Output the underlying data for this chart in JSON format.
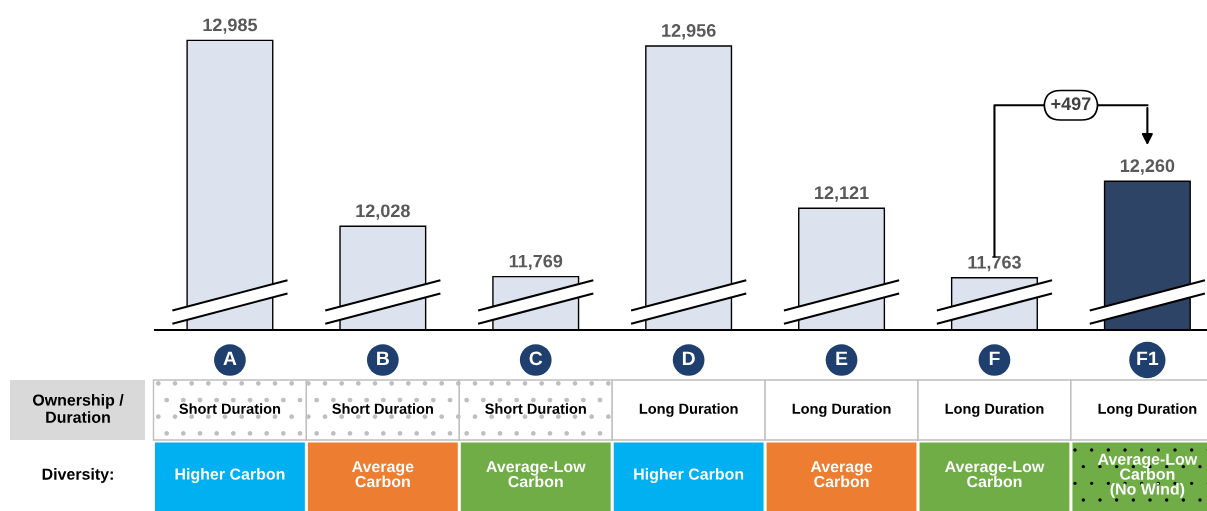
{
  "chart_data": {
    "type": "bar",
    "categories": [
      "A",
      "B",
      "C",
      "D",
      "E",
      "F",
      "F1"
    ],
    "values": [
      12985,
      12028,
      11769,
      12956,
      12121,
      11763,
      12260
    ],
    "value_labels": [
      "12,985",
      "12,028",
      "11,769",
      "12,956",
      "12,121",
      "11,763",
      "12,260"
    ],
    "colors": [
      "#dce3ee",
      "#dce3ee",
      "#dce3ee",
      "#dce3ee",
      "#dce3ee",
      "#dce3ee",
      "#2e4466"
    ],
    "annotations": [
      "+497",
      "Ownership /\nDuration",
      "Diversity:",
      "Short Duration",
      "Short Duration",
      "Short Duration",
      "Long Duration",
      "Long Duration",
      "Long Duration",
      "Long Duration",
      "Higher Carbon",
      "Average\nCarbon",
      "Average-Low\nCarbon",
      "Higher Carbon",
      "Average\nCarbon",
      "Average-Low\nCarbon",
      "Average-Low\nCarbon\n(No Wind)"
    ]
  }
}
